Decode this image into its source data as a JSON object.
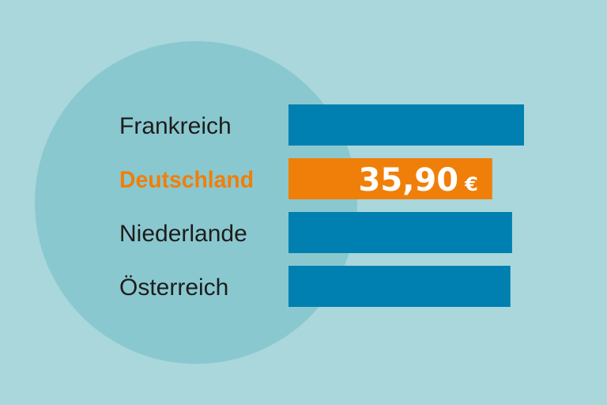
{
  "colors": {
    "background": "#a9d7dc",
    "circle": "#8ac8d0",
    "bar": "#0080b0",
    "highlight": "#f07f0a",
    "label": "#1d1d1b",
    "value_text": "#ffffff"
  },
  "chart_data": {
    "type": "bar",
    "orientation": "horizontal",
    "categories": [
      "Frankreich",
      "Deutschland",
      "Niederlande",
      "Österreich"
    ],
    "values": [
      41.5,
      35.9,
      39.4,
      39.1
    ],
    "highlight_index": 1,
    "data_labels": [
      {
        "index": 1,
        "number": "35,90",
        "unit": "€"
      }
    ],
    "xlim": [
      0,
      41.5
    ],
    "grid": false,
    "legend": "none"
  }
}
